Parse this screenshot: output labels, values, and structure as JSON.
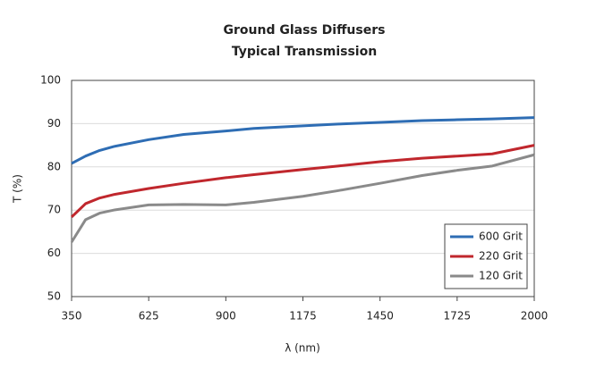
{
  "chart_data": {
    "type": "line",
    "title": "Ground Glass Diffusers",
    "subtitle": "Typical Transmission",
    "x_label": "λ (nm)",
    "y_label": "T (%)",
    "x": [
      350,
      400,
      450,
      500,
      625,
      750,
      900,
      1000,
      1175,
      1300,
      1450,
      1600,
      1725,
      1850,
      2000
    ],
    "series": [
      {
        "name": "600 Grit",
        "color": "#2e6db4",
        "values": [
          80.8,
          82.5,
          83.8,
          84.7,
          86.3,
          87.5,
          88.3,
          88.9,
          89.5,
          89.9,
          90.3,
          90.7,
          90.9,
          91.1,
          91.4
        ]
      },
      {
        "name": "220 Grit",
        "color": "#c0272d",
        "values": [
          68.4,
          71.5,
          72.8,
          73.6,
          75.0,
          76.2,
          77.5,
          78.2,
          79.4,
          80.2,
          81.2,
          82.0,
          82.5,
          83.0,
          85.0
        ]
      },
      {
        "name": "120 Grit",
        "color": "#8a8a8a",
        "values": [
          62.6,
          67.8,
          69.3,
          70.0,
          71.2,
          71.3,
          71.2,
          71.8,
          73.2,
          74.5,
          76.2,
          78.0,
          79.2,
          80.2,
          82.8
        ]
      }
    ],
    "xlim": [
      350,
      2000
    ],
    "xticks": [
      350,
      625,
      900,
      1175,
      1450,
      1725,
      2000
    ],
    "ylim": [
      50,
      100
    ],
    "yticks": [
      50,
      60,
      70,
      80,
      90,
      100
    ],
    "grid": true,
    "legend": "lower right"
  }
}
